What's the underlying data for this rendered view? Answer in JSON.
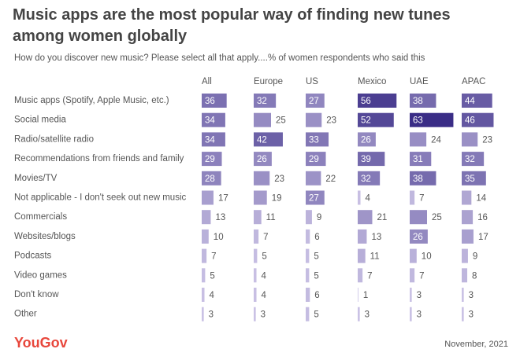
{
  "chart_data": {
    "type": "bar-grid",
    "title": "Music apps are the most popular way of finding new tunes among women globally",
    "subtitle": "How do you discover new music? Please select all that apply....% of women respondents who said this",
    "source": "YouGov",
    "date": "November, 2021",
    "color_scale": [
      "#ece5fb",
      "#3a2d86"
    ],
    "categories": [
      "Music apps (Spotify, Apple Music, etc.)",
      "Social media",
      "Radio/satellite radio",
      "Recommendations from friends and family",
      "Movies/TV",
      "Not applicable - I don't seek out new music",
      "Commercials",
      "Websites/blogs",
      "Podcasts",
      "Video games",
      "Don't know",
      "Other"
    ],
    "series": [
      {
        "name": "All",
        "values": [
          36,
          34,
          34,
          29,
          28,
          17,
          13,
          10,
          7,
          5,
          4,
          3
        ]
      },
      {
        "name": "Europe",
        "values": [
          32,
          25,
          42,
          26,
          23,
          19,
          11,
          7,
          5,
          4,
          4,
          3
        ]
      },
      {
        "name": "US",
        "values": [
          27,
          23,
          33,
          29,
          22,
          27,
          9,
          6,
          5,
          5,
          6,
          5
        ]
      },
      {
        "name": "Mexico",
        "values": [
          56,
          52,
          26,
          39,
          32,
          4,
          21,
          13,
          11,
          7,
          1,
          3
        ]
      },
      {
        "name": "UAE",
        "values": [
          38,
          63,
          24,
          31,
          38,
          7,
          25,
          26,
          10,
          7,
          3,
          3
        ]
      },
      {
        "name": "APAC",
        "values": [
          44,
          46,
          23,
          32,
          35,
          14,
          16,
          17,
          9,
          8,
          3,
          3
        ]
      }
    ]
  }
}
